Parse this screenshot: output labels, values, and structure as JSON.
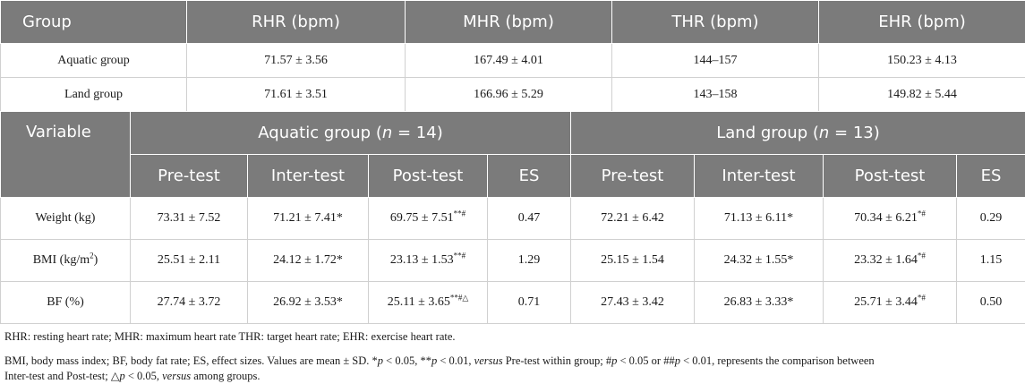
{
  "table1": {
    "headers": [
      "Group",
      "RHR (bpm)",
      "MHR (bpm)",
      "THR (bpm)",
      "EHR (bpm)"
    ],
    "rows": [
      [
        "Aquatic group",
        "71.57 ± 3.56",
        "167.49 ± 4.01",
        "144–157",
        "150.23 ± 4.13"
      ],
      [
        "Land group",
        "71.61 ± 3.51",
        "166.96 ± 5.29",
        "143–158",
        "149.82 ± 5.44"
      ]
    ]
  },
  "table2": {
    "variable_header": "Variable",
    "aquatic_header": "Aquatic group (",
    "aquatic_n": "n",
    "aquatic_tail": " = 14)",
    "land_header": "Land group (",
    "land_n": "n",
    "land_tail": " = 13)",
    "subheaders": [
      "Pre-test",
      "Inter-test",
      "Post-test",
      "ES",
      "Pre-test",
      "Inter-test",
      "Post-test",
      "ES"
    ],
    "rows": [
      {
        "variable": "Weight (kg)",
        "a_pre": "73.31 ± 7.52",
        "a_inter": "71.21 ± 7.41*",
        "a_post": "69.75 ± 7.51",
        "a_post_sup": "**#",
        "a_es": "0.47",
        "l_pre": "72.21 ± 6.42",
        "l_inter": "71.13 ± 6.11*",
        "l_post": "70.34 ± 6.21",
        "l_post_sup": "*#",
        "l_es": "0.29"
      },
      {
        "variable": "BMI (kg/m",
        "variable_sup": "2",
        "variable_tail": ")",
        "a_pre": "25.51 ± 2.11",
        "a_inter": "24.12 ± 1.72*",
        "a_post": "23.13 ± 1.53",
        "a_post_sup": "**#",
        "a_es": "1.29",
        "l_pre": "25.15 ± 1.54",
        "l_inter": "24.32 ± 1.55*",
        "l_post": "23.32 ± 1.64",
        "l_post_sup": "*#",
        "l_es": "1.15"
      },
      {
        "variable": "BF (%)",
        "a_pre": "27.74 ± 3.72",
        "a_inter": "26.92 ± 3.53*",
        "a_post": "25.11 ± 3.65",
        "a_post_sup": "**#△",
        "a_es": "0.71",
        "l_pre": "27.43 ± 3.42",
        "l_inter": "26.83 ± 3.33*",
        "l_post": "25.71 ± 3.44",
        "l_post_sup": "*#",
        "l_es": "0.50"
      }
    ]
  },
  "notes": {
    "line1": "RHR: resting heart rate; MHR: maximum heart rate THR: target heart rate; EHR: exercise heart rate.",
    "line2_a": "BMI, body mass index; BF, body fat rate; ES, effect sizes. Values are mean ± SD. *",
    "p": "p",
    "line2_b": " < 0.05, **",
    "line2_c": " < 0.01, ",
    "versus": "versus",
    "line2_d": " Pre-test within group; #",
    "line2_e": " < 0.05 or ##",
    "line2_f": " < 0.01, represents the comparison between",
    "line3_a": "Inter-test and Post-test; △",
    "line3_b": " < 0.05, ",
    "line3_c": " among groups."
  }
}
